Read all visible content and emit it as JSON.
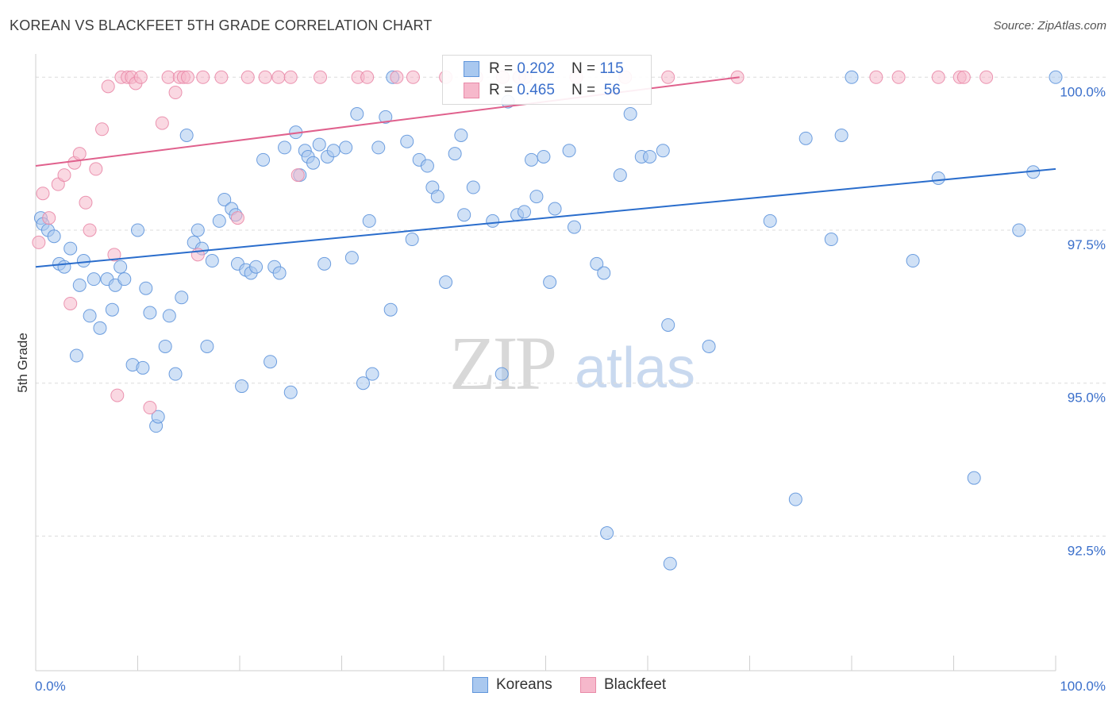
{
  "header": {
    "title": "KOREAN VS BLACKFEET 5TH GRADE CORRELATION CHART",
    "source": "Source: ZipAtlas.com"
  },
  "legend": {
    "series": [
      {
        "r_label": "R = ",
        "r_value": "0.202",
        "n_label": "N = ",
        "n_value": "115"
      },
      {
        "r_label": "R = ",
        "r_value": "0.465",
        "n_label": "N = ",
        "n_value": " 56"
      }
    ]
  },
  "bottom_legend": {
    "koreans": "Koreans",
    "blackfeet": "Blackfeet"
  },
  "watermark": {
    "zip": "ZIP",
    "atlas": "atlas"
  },
  "colors": {
    "koreans_fill": "#a9c8ef",
    "koreans_stroke": "#5f95db",
    "koreans_line": "#2a6dcc",
    "blackfeet_fill": "#f6b8cb",
    "blackfeet_stroke": "#e98aa8",
    "blackfeet_line": "#e0618d",
    "axis_label": "#3a6fcb",
    "grid": "#dcdcdc"
  },
  "chart_data": {
    "type": "scatter",
    "title": "KOREAN VS BLACKFEET 5TH GRADE CORRELATION CHART",
    "xlabel": "",
    "ylabel": "5th Grade",
    "xlim": [
      0,
      100
    ],
    "ylim": [
      90.3,
      100.25
    ],
    "x_tick_labels": [
      "0.0%",
      "100.0%"
    ],
    "y_ticks": [
      92.5,
      95.0,
      97.5,
      100.0
    ],
    "y_tick_labels": [
      "92.5%",
      "95.0%",
      "97.5%",
      "100.0%"
    ],
    "grid": true,
    "legend_position": "top-center",
    "series": [
      {
        "name": "Koreans",
        "trend": {
          "x": [
            0,
            100
          ],
          "y": [
            96.9,
            98.5
          ]
        },
        "points": [
          [
            0.5,
            97.7
          ],
          [
            0.7,
            97.6
          ],
          [
            1.2,
            97.5
          ],
          [
            1.8,
            97.4
          ],
          [
            2.3,
            96.95
          ],
          [
            2.8,
            96.9
          ],
          [
            3.4,
            97.2
          ],
          [
            4.0,
            95.45
          ],
          [
            4.3,
            96.6
          ],
          [
            4.7,
            97.0
          ],
          [
            5.3,
            96.1
          ],
          [
            5.7,
            96.7
          ],
          [
            6.3,
            95.9
          ],
          [
            7.0,
            96.7
          ],
          [
            7.5,
            96.2
          ],
          [
            7.8,
            96.6
          ],
          [
            8.3,
            96.9
          ],
          [
            8.7,
            96.7
          ],
          [
            9.5,
            95.3
          ],
          [
            10.0,
            97.5
          ],
          [
            10.5,
            95.25
          ],
          [
            10.8,
            96.55
          ],
          [
            11.2,
            96.15
          ],
          [
            11.8,
            94.3
          ],
          [
            12.0,
            94.45
          ],
          [
            12.7,
            95.6
          ],
          [
            13.1,
            96.1
          ],
          [
            13.7,
            95.15
          ],
          [
            14.3,
            96.4
          ],
          [
            14.8,
            99.05
          ],
          [
            15.5,
            97.3
          ],
          [
            15.9,
            97.5
          ],
          [
            16.3,
            97.2
          ],
          [
            16.8,
            95.6
          ],
          [
            17.3,
            97.0
          ],
          [
            18.0,
            97.65
          ],
          [
            18.5,
            98.0
          ],
          [
            19.2,
            97.85
          ],
          [
            19.6,
            97.75
          ],
          [
            19.8,
            96.95
          ],
          [
            20.2,
            94.95
          ],
          [
            20.6,
            96.85
          ],
          [
            21.1,
            96.8
          ],
          [
            21.6,
            96.9
          ],
          [
            22.3,
            98.65
          ],
          [
            23.0,
            95.35
          ],
          [
            23.4,
            96.9
          ],
          [
            23.9,
            96.8
          ],
          [
            24.4,
            98.85
          ],
          [
            25.0,
            94.85
          ],
          [
            25.5,
            99.1
          ],
          [
            25.9,
            98.4
          ],
          [
            26.4,
            98.8
          ],
          [
            26.7,
            98.7
          ],
          [
            27.2,
            98.6
          ],
          [
            27.8,
            98.9
          ],
          [
            28.3,
            96.95
          ],
          [
            28.6,
            98.7
          ],
          [
            29.2,
            98.8
          ],
          [
            30.4,
            98.85
          ],
          [
            31.0,
            97.05
          ],
          [
            31.5,
            99.4
          ],
          [
            32.1,
            95.0
          ],
          [
            32.7,
            97.65
          ],
          [
            33.0,
            95.15
          ],
          [
            33.6,
            98.85
          ],
          [
            34.3,
            99.35
          ],
          [
            34.8,
            96.2
          ],
          [
            35.0,
            100.0
          ],
          [
            36.4,
            98.95
          ],
          [
            36.9,
            97.35
          ],
          [
            37.6,
            98.65
          ],
          [
            38.4,
            98.55
          ],
          [
            38.9,
            98.2
          ],
          [
            39.4,
            98.05
          ],
          [
            40.2,
            96.65
          ],
          [
            41.1,
            98.75
          ],
          [
            41.7,
            99.05
          ],
          [
            42.0,
            97.75
          ],
          [
            42.9,
            98.2
          ],
          [
            44.8,
            97.65
          ],
          [
            45.7,
            95.15
          ],
          [
            46.3,
            99.6
          ],
          [
            47.2,
            97.75
          ],
          [
            47.9,
            97.8
          ],
          [
            48.6,
            98.65
          ],
          [
            49.1,
            98.05
          ],
          [
            49.8,
            98.7
          ],
          [
            50.4,
            96.65
          ],
          [
            50.9,
            97.85
          ],
          [
            52.3,
            98.8
          ],
          [
            52.8,
            97.55
          ],
          [
            55.0,
            96.95
          ],
          [
            55.7,
            96.8
          ],
          [
            56.0,
            92.55
          ],
          [
            57.3,
            98.4
          ],
          [
            58.3,
            99.4
          ],
          [
            59.4,
            98.7
          ],
          [
            60.2,
            98.7
          ],
          [
            61.5,
            98.8
          ],
          [
            62.0,
            95.95
          ],
          [
            62.2,
            92.05
          ],
          [
            66.0,
            95.6
          ],
          [
            72.0,
            97.65
          ],
          [
            74.5,
            93.1
          ],
          [
            75.5,
            99.0
          ],
          [
            78.0,
            97.35
          ],
          [
            79.0,
            99.05
          ],
          [
            86.0,
            97.0
          ],
          [
            88.5,
            98.35
          ],
          [
            92.0,
            93.45
          ],
          [
            96.4,
            97.5
          ],
          [
            97.8,
            98.45
          ],
          [
            80.0,
            100.0
          ],
          [
            100.0,
            100.0
          ]
        ]
      },
      {
        "name": "Blackfeet",
        "trend": {
          "x": [
            0,
            69
          ],
          "y": [
            98.55,
            100.0
          ]
        },
        "points": [
          [
            0.3,
            97.3
          ],
          [
            0.7,
            98.1
          ],
          [
            1.3,
            97.7
          ],
          [
            2.2,
            98.25
          ],
          [
            2.8,
            98.4
          ],
          [
            3.4,
            96.3
          ],
          [
            3.8,
            98.6
          ],
          [
            4.3,
            98.75
          ],
          [
            4.9,
            97.95
          ],
          [
            5.3,
            97.5
          ],
          [
            5.9,
            98.5
          ],
          [
            6.5,
            99.15
          ],
          [
            7.1,
            99.85
          ],
          [
            7.7,
            97.1
          ],
          [
            8.0,
            94.8
          ],
          [
            8.4,
            100.0
          ],
          [
            9.0,
            100.0
          ],
          [
            9.4,
            100.0
          ],
          [
            9.8,
            99.9
          ],
          [
            10.3,
            100.0
          ],
          [
            11.2,
            94.6
          ],
          [
            12.4,
            99.25
          ],
          [
            13.0,
            100.0
          ],
          [
            13.7,
            99.75
          ],
          [
            14.1,
            100.0
          ],
          [
            14.5,
            100.0
          ],
          [
            14.9,
            100.0
          ],
          [
            15.9,
            97.1
          ],
          [
            16.4,
            100.0
          ],
          [
            18.2,
            100.0
          ],
          [
            19.8,
            97.7
          ],
          [
            20.8,
            100.0
          ],
          [
            22.5,
            100.0
          ],
          [
            23.8,
            100.0
          ],
          [
            25.0,
            100.0
          ],
          [
            25.7,
            98.4
          ],
          [
            27.9,
            100.0
          ],
          [
            31.6,
            100.0
          ],
          [
            32.5,
            100.0
          ],
          [
            35.4,
            100.0
          ],
          [
            37.0,
            100.0
          ],
          [
            40.2,
            100.0
          ],
          [
            43.2,
            100.0
          ],
          [
            45.8,
            100.0
          ],
          [
            47.4,
            100.0
          ],
          [
            48.0,
            100.0
          ],
          [
            53.0,
            100.0
          ],
          [
            57.8,
            100.0
          ],
          [
            62.0,
            100.0
          ],
          [
            68.8,
            100.0
          ],
          [
            82.4,
            100.0
          ],
          [
            84.6,
            100.0
          ],
          [
            88.5,
            100.0
          ],
          [
            90.6,
            100.0
          ],
          [
            91.0,
            100.0
          ],
          [
            93.2,
            100.0
          ]
        ]
      }
    ]
  }
}
